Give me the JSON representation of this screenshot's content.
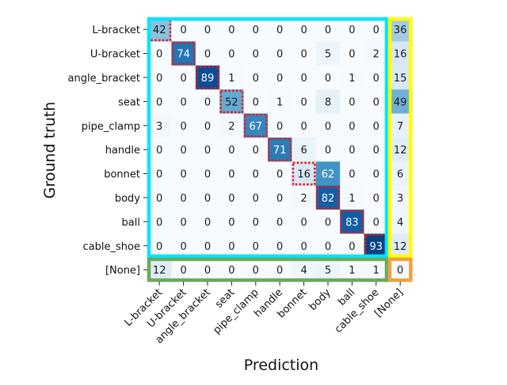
{
  "chart_data": {
    "type": "heatmap",
    "title": "",
    "xlabel": "Prediction",
    "ylabel": "Ground truth",
    "row_labels": [
      "L-bracket",
      "U-bracket",
      "angle_bracket",
      "seat",
      "pipe_clamp",
      "handle",
      "bonnet",
      "body",
      "ball",
      "cable_shoe",
      "[None]"
    ],
    "col_labels": [
      "L-bracket",
      "U-bracket",
      "angle_bracket",
      "seat",
      "pipe_clamp",
      "handle",
      "bonnet",
      "body",
      "ball",
      "cable_shoe",
      "[None]"
    ],
    "values": [
      [
        42,
        0,
        0,
        0,
        0,
        0,
        0,
        0,
        0,
        0,
        36
      ],
      [
        0,
        74,
        0,
        0,
        0,
        0,
        0,
        5,
        0,
        2,
        16
      ],
      [
        0,
        0,
        89,
        1,
        0,
        0,
        0,
        0,
        1,
        0,
        15
      ],
      [
        0,
        0,
        0,
        52,
        0,
        1,
        0,
        8,
        0,
        0,
        49
      ],
      [
        3,
        0,
        0,
        2,
        67,
        0,
        0,
        0,
        0,
        0,
        7
      ],
      [
        0,
        0,
        0,
        0,
        0,
        71,
        6,
        0,
        0,
        0,
        12
      ],
      [
        0,
        0,
        0,
        0,
        0,
        0,
        16,
        62,
        0,
        0,
        6
      ],
      [
        0,
        0,
        0,
        0,
        0,
        0,
        2,
        82,
        1,
        0,
        3
      ],
      [
        0,
        0,
        0,
        0,
        0,
        0,
        0,
        0,
        83,
        0,
        4
      ],
      [
        0,
        0,
        0,
        0,
        0,
        0,
        0,
        0,
        0,
        93,
        12
      ],
      [
        12,
        0,
        0,
        0,
        0,
        0,
        4,
        5,
        1,
        1,
        0
      ]
    ],
    "value_range": [
      0,
      100
    ],
    "colormap": "Blues",
    "highlight_diagonal": "dotted-red",
    "region_boxes": [
      {
        "name": "class-confusion",
        "color": "#00e5ff",
        "rows": [
          0,
          9
        ],
        "cols": [
          0,
          9
        ]
      },
      {
        "name": "missed-detections",
        "color": "#ffff00",
        "rows": [
          0,
          9
        ],
        "cols": [
          10,
          10
        ]
      },
      {
        "name": "false-positives",
        "color": "#6aaa5a",
        "rows": [
          10,
          10
        ],
        "cols": [
          0,
          9
        ]
      },
      {
        "name": "none-none",
        "color": "#f0a040",
        "rows": [
          10,
          10
        ],
        "cols": [
          10,
          10
        ]
      }
    ],
    "colors": {
      "diagonal_outline": "#e02020",
      "text_dark": "#1a1a1a",
      "text_light": "#ffffff"
    }
  }
}
